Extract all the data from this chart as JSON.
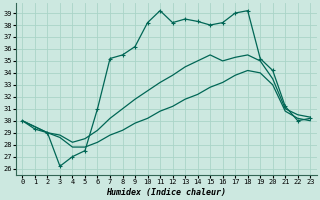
{
  "xlabel": "Humidex (Indice chaleur)",
  "bg_color": "#cce8e0",
  "grid_color": "#aad4c8",
  "line_color": "#006655",
  "xlim": [
    -0.5,
    23.5
  ],
  "ylim": [
    25.5,
    39.8
  ],
  "xticks": [
    0,
    1,
    2,
    3,
    4,
    5,
    6,
    7,
    8,
    9,
    10,
    11,
    12,
    13,
    14,
    15,
    16,
    17,
    18,
    19,
    20,
    21,
    22,
    23
  ],
  "yticks": [
    26,
    27,
    28,
    29,
    30,
    31,
    32,
    33,
    34,
    35,
    36,
    37,
    38,
    39
  ],
  "line_wavy": [
    30,
    29.3,
    29,
    26.2,
    27.0,
    27.5,
    31.0,
    35.2,
    35.5,
    36.2,
    38.2,
    39.2,
    38.2,
    38.5,
    38.3,
    38.0,
    38.2,
    39.0,
    39.2,
    35.2,
    34.2,
    31.2,
    30.0,
    30.2
  ],
  "line_mid": [
    30,
    29.5,
    29,
    28.8,
    28.2,
    28.5,
    29.2,
    30.2,
    31.0,
    31.8,
    32.5,
    33.2,
    33.8,
    34.5,
    35.0,
    35.5,
    35.0,
    35.3,
    35.5,
    35.0,
    33.5,
    31.0,
    30.5,
    30.3
  ],
  "line_bot": [
    30,
    29.5,
    29,
    28.6,
    27.8,
    27.8,
    28.2,
    28.8,
    29.2,
    29.8,
    30.2,
    30.8,
    31.2,
    31.8,
    32.2,
    32.8,
    33.2,
    33.8,
    34.2,
    34.0,
    33.0,
    30.8,
    30.2,
    30.0
  ]
}
